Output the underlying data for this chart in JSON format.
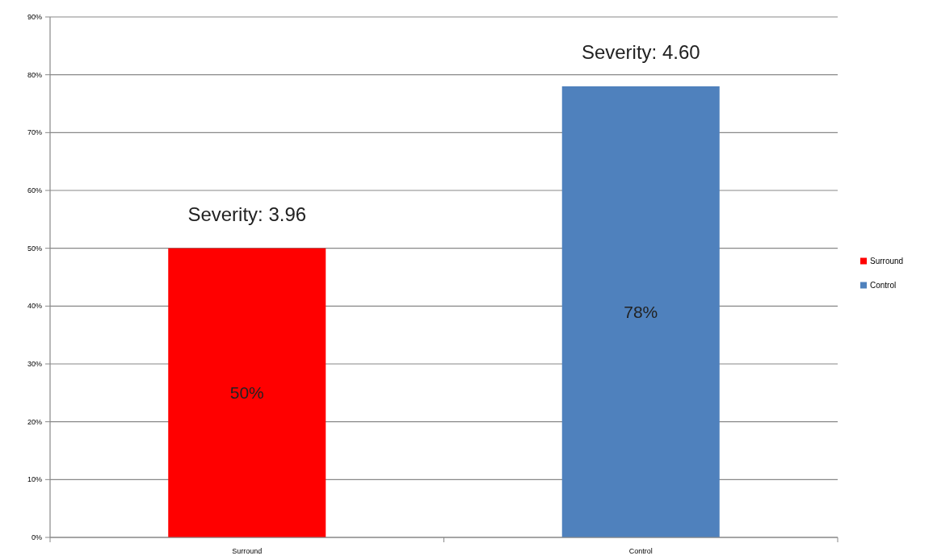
{
  "chart_data": {
    "type": "bar",
    "categories": [
      "Surround",
      "Control"
    ],
    "stacked": true,
    "series": [
      {
        "name": "Surround",
        "color": "#ff0000",
        "values": [
          50,
          null
        ],
        "value_labels": [
          "50%",
          null
        ]
      },
      {
        "name": "Control",
        "color": "#4f81bd",
        "values": [
          null,
          78
        ],
        "value_labels": [
          null,
          "78%"
        ]
      }
    ],
    "ylim": [
      0,
      90
    ],
    "yticks": [
      {
        "value": 0,
        "label": "0%"
      },
      {
        "value": 10,
        "label": "10%"
      },
      {
        "value": 20,
        "label": "20%"
      },
      {
        "value": 30,
        "label": "30%"
      },
      {
        "value": 40,
        "label": "40%"
      },
      {
        "value": 50,
        "label": "50%"
      },
      {
        "value": 60,
        "label": "60%"
      },
      {
        "value": 70,
        "label": "70%"
      },
      {
        "value": 80,
        "label": "80%"
      },
      {
        "value": 90,
        "label": "90%"
      }
    ],
    "grid": "y",
    "legend": "right",
    "annotations": [
      "Severity: 3.96",
      "Severity: 4.60"
    ]
  }
}
